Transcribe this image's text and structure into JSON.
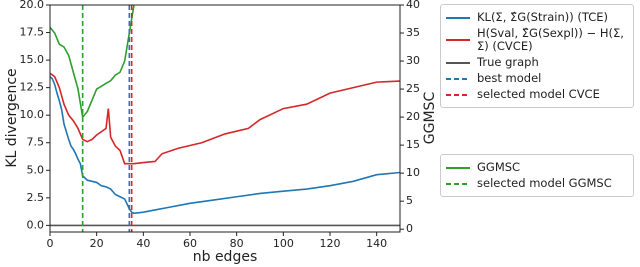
{
  "chart_data": {
    "type": "line",
    "x_label": "nb edges",
    "y_label": "KL divergence",
    "y2_label": "GGMSC",
    "xlim": [
      0,
      150
    ],
    "xticks": [
      0,
      20,
      40,
      60,
      80,
      100,
      120,
      140
    ],
    "ylim": [
      -0.6,
      20
    ],
    "yticks": [
      {
        "value": 0,
        "label": "0.0"
      },
      2.5,
      {
        "value": 5,
        "label": "5.0"
      },
      7.5,
      {
        "value": 10,
        "label": "10.0"
      },
      12.5,
      {
        "value": 15,
        "label": "15.0"
      },
      17.5,
      {
        "value": 20,
        "label": "20.0"
      }
    ],
    "y2lim": [
      -0.5,
      40
    ],
    "y2ticks": [
      0,
      5,
      10,
      15,
      20,
      25,
      30,
      35,
      40
    ],
    "series": [
      {
        "name": "KL(Σ, Σ̂G(Strain)) (TCE)",
        "color": "#1f77b4",
        "x": [
          0,
          1,
          2,
          3,
          4,
          5,
          6,
          7,
          8,
          9,
          10,
          11,
          12,
          13,
          14,
          15,
          16,
          18,
          20,
          22,
          24,
          26,
          28,
          30,
          32,
          34,
          35,
          36,
          40,
          45,
          50,
          60,
          70,
          80,
          90,
          100,
          110,
          120,
          130,
          140,
          150
        ],
        "values": [
          13.5,
          13.3,
          12.8,
          12.0,
          11.3,
          10.5,
          9.2,
          8.5,
          7.8,
          7.2,
          6.9,
          6.5,
          6.0,
          5.6,
          4.5,
          4.3,
          4.1,
          4.0,
          3.9,
          3.6,
          3.5,
          3.3,
          2.8,
          2.6,
          2.4,
          1.5,
          1.2,
          1.1,
          1.2,
          1.4,
          1.6,
          2.0,
          2.3,
          2.6,
          2.9,
          3.1,
          3.3,
          3.6,
          4.0,
          4.6,
          4.8
        ]
      },
      {
        "name": "H(Sval, Σ̂G(Sexpl)) − H(Σ, Σ) (CVCE)",
        "color": "#d62728",
        "x": [
          0,
          2,
          4,
          6,
          8,
          10,
          12,
          14,
          16,
          18,
          20,
          22,
          24,
          25,
          26,
          28,
          30,
          32,
          34,
          36,
          40,
          45,
          48,
          55,
          65,
          75,
          85,
          90,
          100,
          110,
          120,
          130,
          140,
          150
        ],
        "values": [
          13.8,
          13.5,
          12.5,
          11.0,
          10.0,
          9.5,
          8.8,
          7.8,
          7.6,
          7.8,
          8.2,
          8.5,
          8.8,
          10.6,
          8.0,
          7.2,
          6.8,
          5.6,
          5.6,
          5.6,
          5.7,
          5.8,
          6.5,
          7.0,
          7.5,
          8.3,
          8.8,
          9.6,
          10.6,
          11.0,
          12.0,
          12.5,
          13.0,
          13.1
        ]
      },
      {
        "name": "True graph",
        "color": "#555555",
        "x": [
          0,
          150
        ],
        "values": [
          0,
          0
        ]
      },
      {
        "name": "GGMSC",
        "color": "#2ca02c",
        "axis": "y2",
        "x": [
          0,
          2,
          4,
          6,
          8,
          10,
          12,
          14,
          16,
          18,
          20,
          22,
          24,
          26,
          28,
          30,
          32,
          34,
          36
        ],
        "values": [
          36,
          35,
          33,
          32.5,
          31,
          28,
          25,
          20,
          21,
          23,
          25,
          25.5,
          26,
          26.5,
          27.5,
          28,
          30,
          35,
          40
        ]
      }
    ],
    "vlines": [
      {
        "name": "best model",
        "color": "#1f77b4",
        "x": 34
      },
      {
        "name": "selected model CVCE",
        "color": "#d62728",
        "x": 35
      },
      {
        "name": "selected model GGMSC",
        "color": "#2ca02c",
        "x": 14,
        "axis": "y2"
      }
    ]
  }
}
